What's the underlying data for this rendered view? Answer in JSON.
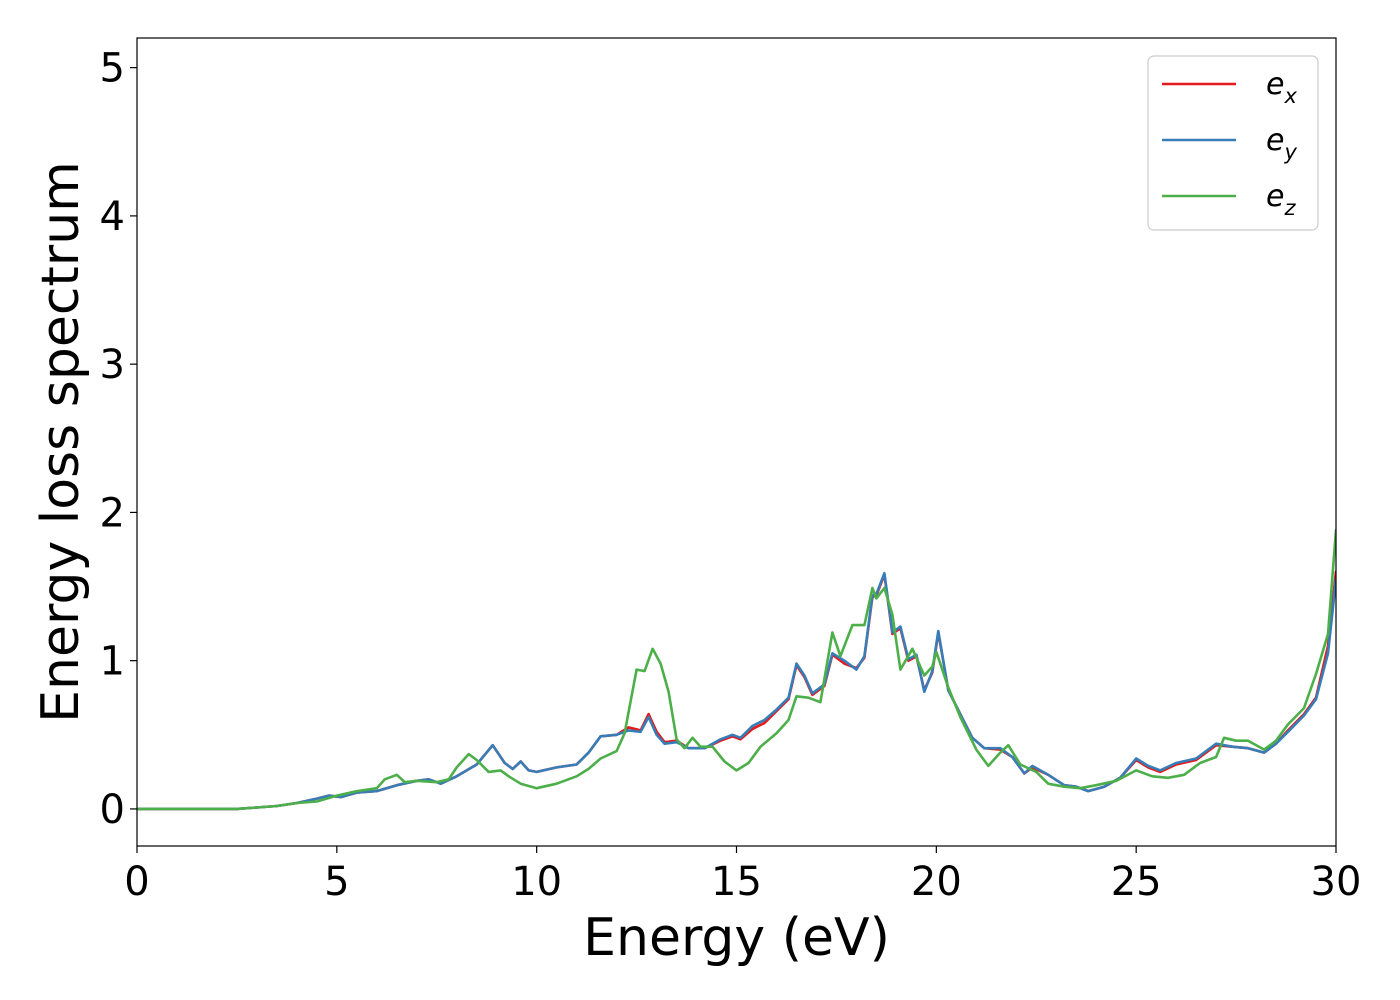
{
  "chart_data": {
    "type": "line",
    "xlabel": "Energy (eV)",
    "ylabel": "Energy loss spectrum",
    "xlim": [
      0,
      30
    ],
    "ylim": [
      -0.25,
      5.2
    ],
    "xticks": [
      0,
      5,
      10,
      15,
      20,
      25,
      30
    ],
    "yticks": [
      0,
      1,
      2,
      3,
      4,
      5
    ],
    "grid": false,
    "legend_position": "top-right",
    "series": [
      {
        "name": "e",
        "subscript": "x",
        "color": "#e41a1c",
        "points": [
          [
            0,
            0
          ],
          [
            2.5,
            0
          ],
          [
            3,
            0.01
          ],
          [
            3.5,
            0.02
          ],
          [
            4,
            0.04
          ],
          [
            4.5,
            0.07
          ],
          [
            4.8,
            0.09
          ],
          [
            5.1,
            0.08
          ],
          [
            5.5,
            0.11
          ],
          [
            6,
            0.12
          ],
          [
            6.5,
            0.16
          ],
          [
            7,
            0.19
          ],
          [
            7.3,
            0.2
          ],
          [
            7.6,
            0.17
          ],
          [
            8,
            0.22
          ],
          [
            8.5,
            0.3
          ],
          [
            8.9,
            0.43
          ],
          [
            9.2,
            0.31
          ],
          [
            9.4,
            0.27
          ],
          [
            9.6,
            0.32
          ],
          [
            9.8,
            0.26
          ],
          [
            10,
            0.25
          ],
          [
            10.5,
            0.28
          ],
          [
            11,
            0.3
          ],
          [
            11.3,
            0.38
          ],
          [
            11.6,
            0.49
          ],
          [
            12,
            0.5
          ],
          [
            12.3,
            0.55
          ],
          [
            12.6,
            0.53
          ],
          [
            12.8,
            0.64
          ],
          [
            13,
            0.52
          ],
          [
            13.2,
            0.45
          ],
          [
            13.5,
            0.46
          ],
          [
            13.8,
            0.41
          ],
          [
            14.2,
            0.41
          ],
          [
            14.6,
            0.46
          ],
          [
            14.9,
            0.49
          ],
          [
            15.1,
            0.47
          ],
          [
            15.4,
            0.54
          ],
          [
            15.7,
            0.58
          ],
          [
            16,
            0.66
          ],
          [
            16.3,
            0.74
          ],
          [
            16.5,
            0.97
          ],
          [
            16.7,
            0.89
          ],
          [
            16.9,
            0.77
          ],
          [
            17.2,
            0.83
          ],
          [
            17.4,
            1.04
          ],
          [
            17.7,
            0.98
          ],
          [
            18,
            0.95
          ],
          [
            18.2,
            1.02
          ],
          [
            18.4,
            1.43
          ],
          [
            18.5,
            1.44
          ],
          [
            18.7,
            1.58
          ],
          [
            18.9,
            1.18
          ],
          [
            19.1,
            1.22
          ],
          [
            19.3,
            1.0
          ],
          [
            19.5,
            1.03
          ],
          [
            19.7,
            0.8
          ],
          [
            19.9,
            0.92
          ],
          [
            20.05,
            1.19
          ],
          [
            20.3,
            0.8
          ],
          [
            20.6,
            0.64
          ],
          [
            20.9,
            0.48
          ],
          [
            21.2,
            0.41
          ],
          [
            21.6,
            0.4
          ],
          [
            21.9,
            0.35
          ],
          [
            22.2,
            0.24
          ],
          [
            22.4,
            0.28
          ],
          [
            22.8,
            0.23
          ],
          [
            23.2,
            0.16
          ],
          [
            23.5,
            0.15
          ],
          [
            23.8,
            0.12
          ],
          [
            24.2,
            0.15
          ],
          [
            24.6,
            0.21
          ],
          [
            25,
            0.33
          ],
          [
            25.3,
            0.28
          ],
          [
            25.6,
            0.25
          ],
          [
            26,
            0.3
          ],
          [
            26.5,
            0.33
          ],
          [
            27,
            0.43
          ],
          [
            27.4,
            0.42
          ],
          [
            27.8,
            0.41
          ],
          [
            28.2,
            0.38
          ],
          [
            28.5,
            0.44
          ],
          [
            28.8,
            0.53
          ],
          [
            29.2,
            0.64
          ],
          [
            29.5,
            0.75
          ],
          [
            29.8,
            1.1
          ],
          [
            30,
            1.6
          ]
        ]
      },
      {
        "name": "e",
        "subscript": "y",
        "color": "#377eb8",
        "points": [
          [
            0,
            0
          ],
          [
            2.5,
            0
          ],
          [
            3,
            0.01
          ],
          [
            3.5,
            0.02
          ],
          [
            4,
            0.04
          ],
          [
            4.5,
            0.07
          ],
          [
            4.8,
            0.09
          ],
          [
            5.1,
            0.08
          ],
          [
            5.5,
            0.11
          ],
          [
            6,
            0.12
          ],
          [
            6.5,
            0.16
          ],
          [
            7,
            0.19
          ],
          [
            7.3,
            0.2
          ],
          [
            7.6,
            0.17
          ],
          [
            8,
            0.22
          ],
          [
            8.5,
            0.3
          ],
          [
            8.9,
            0.43
          ],
          [
            9.2,
            0.31
          ],
          [
            9.4,
            0.27
          ],
          [
            9.6,
            0.32
          ],
          [
            9.8,
            0.26
          ],
          [
            10,
            0.25
          ],
          [
            10.5,
            0.28
          ],
          [
            11,
            0.3
          ],
          [
            11.3,
            0.38
          ],
          [
            11.6,
            0.49
          ],
          [
            12,
            0.5
          ],
          [
            12.3,
            0.53
          ],
          [
            12.6,
            0.52
          ],
          [
            12.8,
            0.62
          ],
          [
            13,
            0.5
          ],
          [
            13.2,
            0.44
          ],
          [
            13.5,
            0.45
          ],
          [
            13.8,
            0.41
          ],
          [
            14.2,
            0.41
          ],
          [
            14.6,
            0.47
          ],
          [
            14.9,
            0.5
          ],
          [
            15.1,
            0.48
          ],
          [
            15.4,
            0.56
          ],
          [
            15.7,
            0.6
          ],
          [
            16,
            0.67
          ],
          [
            16.3,
            0.75
          ],
          [
            16.5,
            0.98
          ],
          [
            16.7,
            0.9
          ],
          [
            16.9,
            0.78
          ],
          [
            17.2,
            0.84
          ],
          [
            17.4,
            1.05
          ],
          [
            17.7,
            1.0
          ],
          [
            18,
            0.94
          ],
          [
            18.2,
            1.03
          ],
          [
            18.4,
            1.44
          ],
          [
            18.5,
            1.45
          ],
          [
            18.7,
            1.59
          ],
          [
            18.9,
            1.19
          ],
          [
            19.1,
            1.23
          ],
          [
            19.3,
            1.01
          ],
          [
            19.5,
            1.04
          ],
          [
            19.7,
            0.79
          ],
          [
            19.9,
            0.93
          ],
          [
            20.05,
            1.2
          ],
          [
            20.3,
            0.8
          ],
          [
            20.6,
            0.64
          ],
          [
            20.9,
            0.48
          ],
          [
            21.2,
            0.41
          ],
          [
            21.6,
            0.41
          ],
          [
            21.9,
            0.35
          ],
          [
            22.2,
            0.24
          ],
          [
            22.4,
            0.29
          ],
          [
            22.8,
            0.23
          ],
          [
            23.2,
            0.16
          ],
          [
            23.5,
            0.15
          ],
          [
            23.8,
            0.12
          ],
          [
            24.2,
            0.15
          ],
          [
            24.6,
            0.21
          ],
          [
            25,
            0.34
          ],
          [
            25.3,
            0.29
          ],
          [
            25.6,
            0.26
          ],
          [
            26,
            0.31
          ],
          [
            26.5,
            0.34
          ],
          [
            27,
            0.44
          ],
          [
            27.4,
            0.42
          ],
          [
            27.8,
            0.41
          ],
          [
            28.2,
            0.38
          ],
          [
            28.5,
            0.44
          ],
          [
            28.8,
            0.52
          ],
          [
            29.2,
            0.63
          ],
          [
            29.5,
            0.74
          ],
          [
            29.8,
            1.05
          ],
          [
            30,
            1.55
          ]
        ]
      },
      {
        "name": "e",
        "subscript": "z",
        "color": "#4daf4a",
        "points": [
          [
            0,
            0
          ],
          [
            2.5,
            0
          ],
          [
            3,
            0.01
          ],
          [
            3.5,
            0.02
          ],
          [
            4,
            0.04
          ],
          [
            4.5,
            0.05
          ],
          [
            5,
            0.09
          ],
          [
            5.5,
            0.12
          ],
          [
            6,
            0.14
          ],
          [
            6.2,
            0.2
          ],
          [
            6.5,
            0.23
          ],
          [
            6.7,
            0.18
          ],
          [
            7,
            0.19
          ],
          [
            7.5,
            0.18
          ],
          [
            7.8,
            0.2
          ],
          [
            8,
            0.28
          ],
          [
            8.3,
            0.37
          ],
          [
            8.5,
            0.33
          ],
          [
            8.8,
            0.25
          ],
          [
            9.1,
            0.26
          ],
          [
            9.3,
            0.22
          ],
          [
            9.6,
            0.17
          ],
          [
            10,
            0.14
          ],
          [
            10.5,
            0.17
          ],
          [
            11,
            0.22
          ],
          [
            11.3,
            0.27
          ],
          [
            11.6,
            0.34
          ],
          [
            12,
            0.39
          ],
          [
            12.2,
            0.51
          ],
          [
            12.5,
            0.94
          ],
          [
            12.7,
            0.93
          ],
          [
            12.9,
            1.08
          ],
          [
            13.1,
            0.98
          ],
          [
            13.3,
            0.79
          ],
          [
            13.5,
            0.47
          ],
          [
            13.7,
            0.41
          ],
          [
            13.9,
            0.48
          ],
          [
            14.1,
            0.42
          ],
          [
            14.4,
            0.42
          ],
          [
            14.7,
            0.32
          ],
          [
            15,
            0.26
          ],
          [
            15.3,
            0.31
          ],
          [
            15.6,
            0.42
          ],
          [
            16,
            0.51
          ],
          [
            16.3,
            0.6
          ],
          [
            16.5,
            0.76
          ],
          [
            16.8,
            0.75
          ],
          [
            17.1,
            0.72
          ],
          [
            17.4,
            1.19
          ],
          [
            17.6,
            1.03
          ],
          [
            17.9,
            1.24
          ],
          [
            18.2,
            1.24
          ],
          [
            18.4,
            1.49
          ],
          [
            18.5,
            1.42
          ],
          [
            18.7,
            1.49
          ],
          [
            18.9,
            1.31
          ],
          [
            19.1,
            0.94
          ],
          [
            19.4,
            1.08
          ],
          [
            19.7,
            0.9
          ],
          [
            19.9,
            0.96
          ],
          [
            20,
            1.06
          ],
          [
            20.3,
            0.82
          ],
          [
            20.6,
            0.62
          ],
          [
            21,
            0.4
          ],
          [
            21.3,
            0.29
          ],
          [
            21.6,
            0.38
          ],
          [
            21.8,
            0.43
          ],
          [
            22.1,
            0.3
          ],
          [
            22.5,
            0.25
          ],
          [
            22.8,
            0.17
          ],
          [
            23.2,
            0.15
          ],
          [
            23.6,
            0.14
          ],
          [
            24,
            0.16
          ],
          [
            24.5,
            0.19
          ],
          [
            25,
            0.26
          ],
          [
            25.4,
            0.22
          ],
          [
            25.8,
            0.21
          ],
          [
            26.2,
            0.23
          ],
          [
            26.6,
            0.31
          ],
          [
            27,
            0.35
          ],
          [
            27.2,
            0.48
          ],
          [
            27.5,
            0.46
          ],
          [
            27.8,
            0.46
          ],
          [
            28.2,
            0.4
          ],
          [
            28.5,
            0.46
          ],
          [
            28.8,
            0.57
          ],
          [
            29.2,
            0.68
          ],
          [
            29.5,
            0.91
          ],
          [
            29.8,
            1.18
          ],
          [
            30,
            1.88
          ]
        ]
      }
    ]
  }
}
